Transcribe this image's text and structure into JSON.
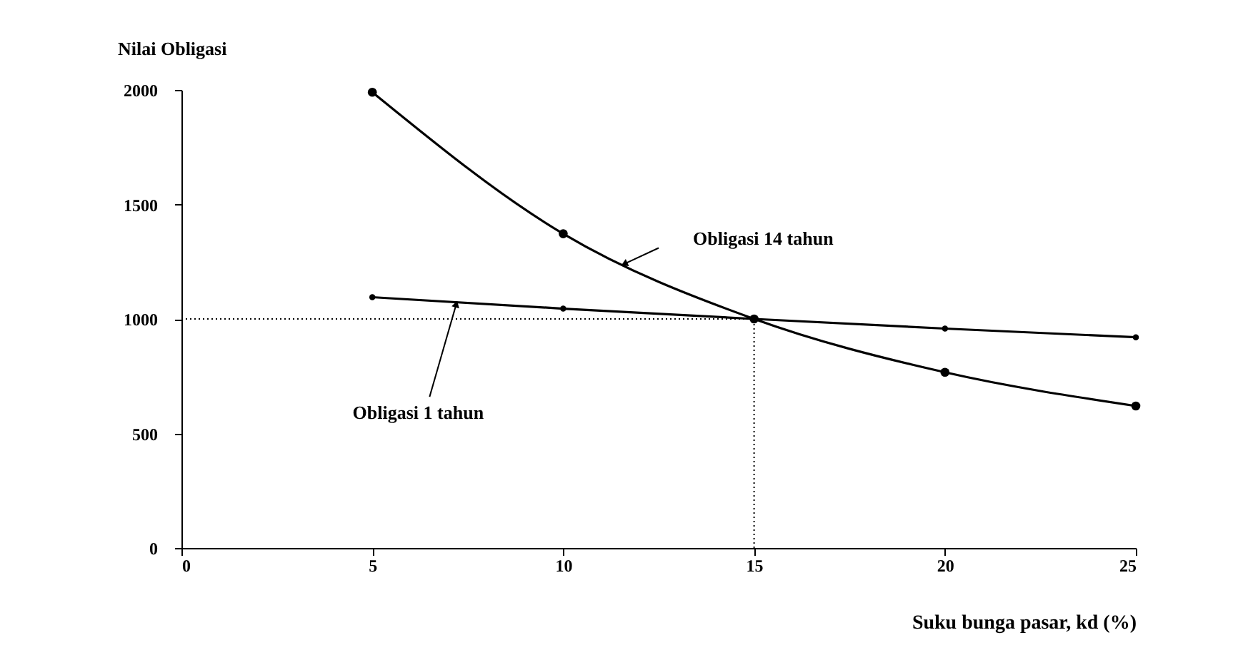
{
  "chart_data": {
    "type": "line",
    "ylabel": "Nilai Obligasi",
    "xlabel": "Suku bunga pasar, kd (%)",
    "x": [
      5,
      10,
      15,
      20,
      25
    ],
    "series": [
      {
        "name": "Obligasi 14 tahun",
        "color": "#000000",
        "values": [
          1990,
          1372,
          1000,
          767,
          620
        ]
      },
      {
        "name": "Obligasi 1 tahun",
        "color": "#000000",
        "values": [
          1095,
          1045,
          1000,
          958,
          920
        ]
      }
    ],
    "xlim": [
      0,
      25
    ],
    "xticks": [
      0,
      5,
      10,
      15,
      20,
      25
    ],
    "ylim": [
      0,
      2000
    ],
    "yticks": [
      0,
      500,
      1000,
      1500,
      2000
    ],
    "ref_lines": [
      {
        "axis": "y",
        "value": 1000,
        "line_style": "dotted",
        "color": "#000000"
      },
      {
        "axis": "x",
        "value": 15,
        "line_style": "dotted",
        "color": "#000000"
      }
    ],
    "grid": false,
    "marker": "circle",
    "line_style": "solid"
  }
}
